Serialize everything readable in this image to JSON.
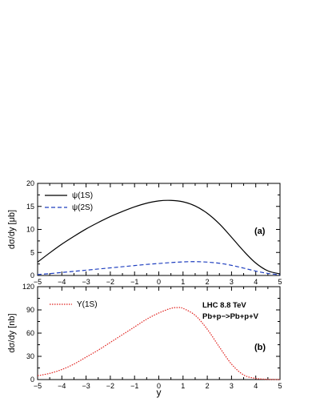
{
  "chart_data": [
    {
      "type": "line",
      "panel_label": "(a)",
      "ylabel": "dσ/dy [μb]",
      "xlabel": "",
      "xlim": [
        -5,
        5
      ],
      "ylim": [
        0,
        20
      ],
      "x_ticks": [
        -5,
        -4,
        -3,
        -2,
        -1,
        0,
        1,
        2,
        3,
        4,
        5
      ],
      "y_ticks": [
        0,
        5,
        10,
        15,
        20
      ],
      "legend_position": "top-left",
      "series": [
        {
          "name": "ψ(1S)",
          "color": "#000000",
          "style": "solid",
          "x": [
            -5,
            -4.5,
            -4,
            -3.5,
            -3,
            -2.5,
            -2,
            -1.5,
            -1,
            -0.5,
            0,
            0.5,
            1,
            1.5,
            2,
            2.5,
            3,
            3.5,
            4,
            4.5,
            5
          ],
          "y": [
            2.9,
            4.9,
            6.8,
            8.5,
            10.1,
            11.5,
            12.8,
            13.9,
            14.9,
            15.7,
            16.2,
            16.3,
            16.0,
            15.1,
            13.5,
            11.2,
            8.3,
            5.3,
            2.7,
            1.0,
            0.35
          ]
        },
        {
          "name": "ψ(2S)",
          "color": "#1f3fbf",
          "style": "dashed",
          "x": [
            -5,
            -4.5,
            -4,
            -3.5,
            -3,
            -2.5,
            -2,
            -1.5,
            -1,
            -0.5,
            0,
            0.5,
            1,
            1.5,
            2,
            2.5,
            3,
            3.5,
            4,
            4.5,
            5
          ],
          "y": [
            0.2,
            0.4,
            0.65,
            0.9,
            1.15,
            1.4,
            1.65,
            1.9,
            2.15,
            2.4,
            2.6,
            2.8,
            2.95,
            3.0,
            2.9,
            2.65,
            2.2,
            1.6,
            0.95,
            0.45,
            0.15
          ]
        }
      ]
    },
    {
      "type": "line",
      "panel_label": "(b)",
      "ylabel": "dσ/dy [nb]",
      "xlabel": "y",
      "xlim": [
        -5,
        5
      ],
      "ylim": [
        0,
        120
      ],
      "x_ticks": [
        -5,
        -4,
        -3,
        -2,
        -1,
        0,
        1,
        2,
        3,
        4,
        5
      ],
      "y_ticks": [
        0,
        30,
        60,
        90,
        120
      ],
      "legend_position": "top-left",
      "annotations": [
        "LHC 8.8 TeV",
        "Pb+p−>Pb+p+V"
      ],
      "series": [
        {
          "name": "Υ(1S)",
          "color": "#e0201c",
          "style": "dotted",
          "x": [
            -5,
            -4.5,
            -4,
            -3.5,
            -3,
            -2.5,
            -2,
            -1.5,
            -1,
            -0.5,
            0,
            0.5,
            0.8,
            1,
            1.5,
            2,
            2.5,
            3,
            3.5,
            4,
            4.5,
            5
          ],
          "y": [
            5,
            8,
            13,
            20,
            29,
            38,
            48,
            58,
            68,
            78,
            86,
            92,
            93,
            92,
            83,
            65,
            42,
            20,
            6,
            1.5,
            0.3,
            0
          ]
        }
      ]
    }
  ]
}
